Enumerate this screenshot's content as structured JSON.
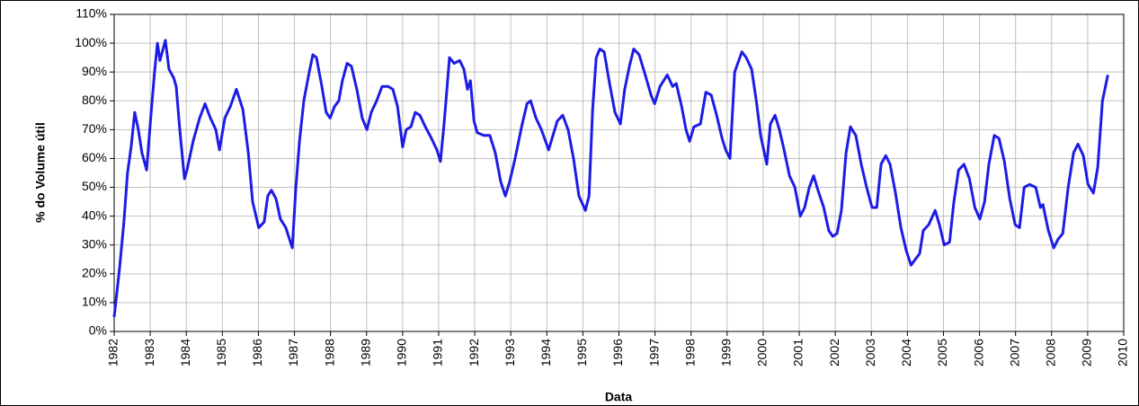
{
  "chart_data": {
    "type": "line",
    "x_label": "Data",
    "y_label": "% do Volume útil",
    "color": "#1c1ce6",
    "grid": true,
    "xlim": [
      1982,
      2010
    ],
    "xticks": [
      1982,
      1983,
      1984,
      1985,
      1986,
      1987,
      1988,
      1989,
      1990,
      1991,
      1992,
      1993,
      1994,
      1995,
      1996,
      1997,
      1998,
      1999,
      2000,
      2001,
      2002,
      2003,
      2004,
      2005,
      2006,
      2007,
      2008,
      2009,
      2010
    ],
    "ylim": [
      0,
      110
    ],
    "yticks": [
      {
        "value": 0,
        "label": "0%"
      },
      {
        "value": 10,
        "label": "10%"
      },
      {
        "value": 20,
        "label": "20%"
      },
      {
        "value": 30,
        "label": "30%"
      },
      {
        "value": 40,
        "label": "40%"
      },
      {
        "value": 50,
        "label": "50%"
      },
      {
        "value": 60,
        "label": "60%"
      },
      {
        "value": 70,
        "label": "70%"
      },
      {
        "value": 80,
        "label": "80%"
      },
      {
        "value": 90,
        "label": "90%"
      },
      {
        "value": 100,
        "label": "100%"
      },
      {
        "value": 110,
        "label": "110%"
      }
    ],
    "x": [
      1982.0,
      1982.15,
      1982.27,
      1982.37,
      1982.47,
      1982.57,
      1982.67,
      1982.77,
      1982.9,
      1983.0,
      1983.12,
      1983.2,
      1983.27,
      1983.42,
      1983.52,
      1983.65,
      1983.72,
      1983.82,
      1983.95,
      1984.02,
      1984.19,
      1984.37,
      1984.52,
      1984.67,
      1984.82,
      1984.92,
      1985.07,
      1985.22,
      1985.39,
      1985.57,
      1985.72,
      1985.84,
      1986.01,
      1986.16,
      1986.26,
      1986.36,
      1986.49,
      1986.61,
      1986.76,
      1986.94,
      1987.04,
      1987.14,
      1987.26,
      1987.41,
      1987.51,
      1987.61,
      1987.76,
      1987.88,
      1987.99,
      1988.11,
      1988.23,
      1988.33,
      1988.46,
      1988.58,
      1988.73,
      1988.88,
      1989.01,
      1989.13,
      1989.28,
      1989.43,
      1989.6,
      1989.73,
      1989.86,
      1990.0,
      1990.1,
      1990.23,
      1990.35,
      1990.48,
      1990.63,
      1990.8,
      1990.95,
      1991.05,
      1991.15,
      1991.3,
      1991.43,
      1991.58,
      1991.7,
      1991.8,
      1991.88,
      1991.98,
      1992.07,
      1992.25,
      1992.42,
      1992.57,
      1992.72,
      1992.85,
      1992.97,
      1993.12,
      1993.3,
      1993.45,
      1993.55,
      1993.7,
      1993.85,
      1994.05,
      1994.17,
      1994.29,
      1994.44,
      1994.59,
      1994.74,
      1994.89,
      1995.07,
      1995.17,
      1995.27,
      1995.37,
      1995.47,
      1995.59,
      1995.74,
      1995.89,
      1996.04,
      1996.16,
      1996.29,
      1996.41,
      1996.56,
      1996.73,
      1996.89,
      1996.99,
      1997.14,
      1997.34,
      1997.49,
      1997.59,
      1997.74,
      1997.86,
      1997.96,
      1998.08,
      1998.26,
      1998.41,
      1998.56,
      1998.71,
      1998.86,
      1998.96,
      1999.08,
      1999.21,
      1999.41,
      1999.53,
      1999.68,
      1999.81,
      1999.93,
      2000.1,
      2000.2,
      2000.33,
      2000.45,
      2000.58,
      2000.73,
      2000.88,
      2001.03,
      2001.15,
      2001.28,
      2001.4,
      2001.52,
      2001.68,
      2001.82,
      2001.93,
      2002.05,
      2002.17,
      2002.3,
      2002.42,
      2002.57,
      2002.72,
      2002.87,
      2003.02,
      2003.15,
      2003.27,
      2003.4,
      2003.52,
      2003.67,
      2003.82,
      2003.97,
      2004.1,
      2004.22,
      2004.34,
      2004.44,
      2004.59,
      2004.77,
      2004.89,
      2005.02,
      2005.17,
      2005.29,
      2005.42,
      2005.57,
      2005.72,
      2005.87,
      2006.01,
      2006.14,
      2006.26,
      2006.41,
      2006.54,
      2006.69,
      2006.84,
      2006.99,
      2007.11,
      2007.24,
      2007.39,
      2007.56,
      2007.69,
      2007.76,
      2007.91,
      2008.06,
      2008.18,
      2008.31,
      2008.46,
      2008.61,
      2008.73,
      2008.88,
      2009.01,
      2009.16,
      2009.28,
      2009.41,
      2009.56
    ],
    "values": [
      5,
      22,
      38,
      55,
      64,
      76,
      70,
      62,
      56,
      72,
      90,
      100,
      94,
      101,
      91,
      88,
      85,
      70,
      53,
      56,
      66,
      74,
      79,
      74,
      70,
      63,
      74,
      78,
      84,
      77,
      62,
      45,
      36,
      38,
      47,
      49,
      46,
      39,
      36,
      29,
      50,
      66,
      80,
      90,
      96,
      95,
      85,
      76,
      74,
      78,
      80,
      87,
      93,
      92,
      84,
      74,
      70,
      76,
      80,
      85,
      85,
      84,
      78,
      64,
      70,
      71,
      76,
      75,
      71,
      67,
      63,
      59,
      72,
      95,
      93,
      94,
      91,
      84,
      87,
      73,
      69,
      68,
      68,
      62,
      52,
      47,
      52,
      60,
      71,
      79,
      80,
      74,
      70,
      63,
      68,
      73,
      75,
      70,
      60,
      47,
      42,
      47,
      77,
      95,
      98,
      97,
      86,
      76,
      72,
      84,
      92,
      98,
      96,
      89,
      82,
      79,
      85,
      89,
      85,
      86,
      78,
      70,
      66,
      71,
      72,
      83,
      82,
      75,
      67,
      63,
      60,
      90,
      97,
      95,
      91,
      80,
      68,
      58,
      72,
      75,
      70,
      63,
      54,
      50,
      40,
      43,
      50,
      54,
      49,
      43,
      35,
      33,
      34,
      42,
      62,
      71,
      68,
      58,
      50,
      43,
      43,
      58,
      61,
      58,
      48,
      36,
      28,
      23,
      25,
      27,
      35,
      37,
      42,
      37,
      30,
      31,
      45,
      56,
      58,
      53,
      43,
      39,
      45,
      58,
      68,
      67,
      59,
      46,
      37,
      36,
      50,
      51,
      50,
      43,
      44,
      35,
      29,
      32,
      34,
      50,
      62,
      65,
      61,
      51,
      48,
      57,
      80,
      89
    ]
  }
}
